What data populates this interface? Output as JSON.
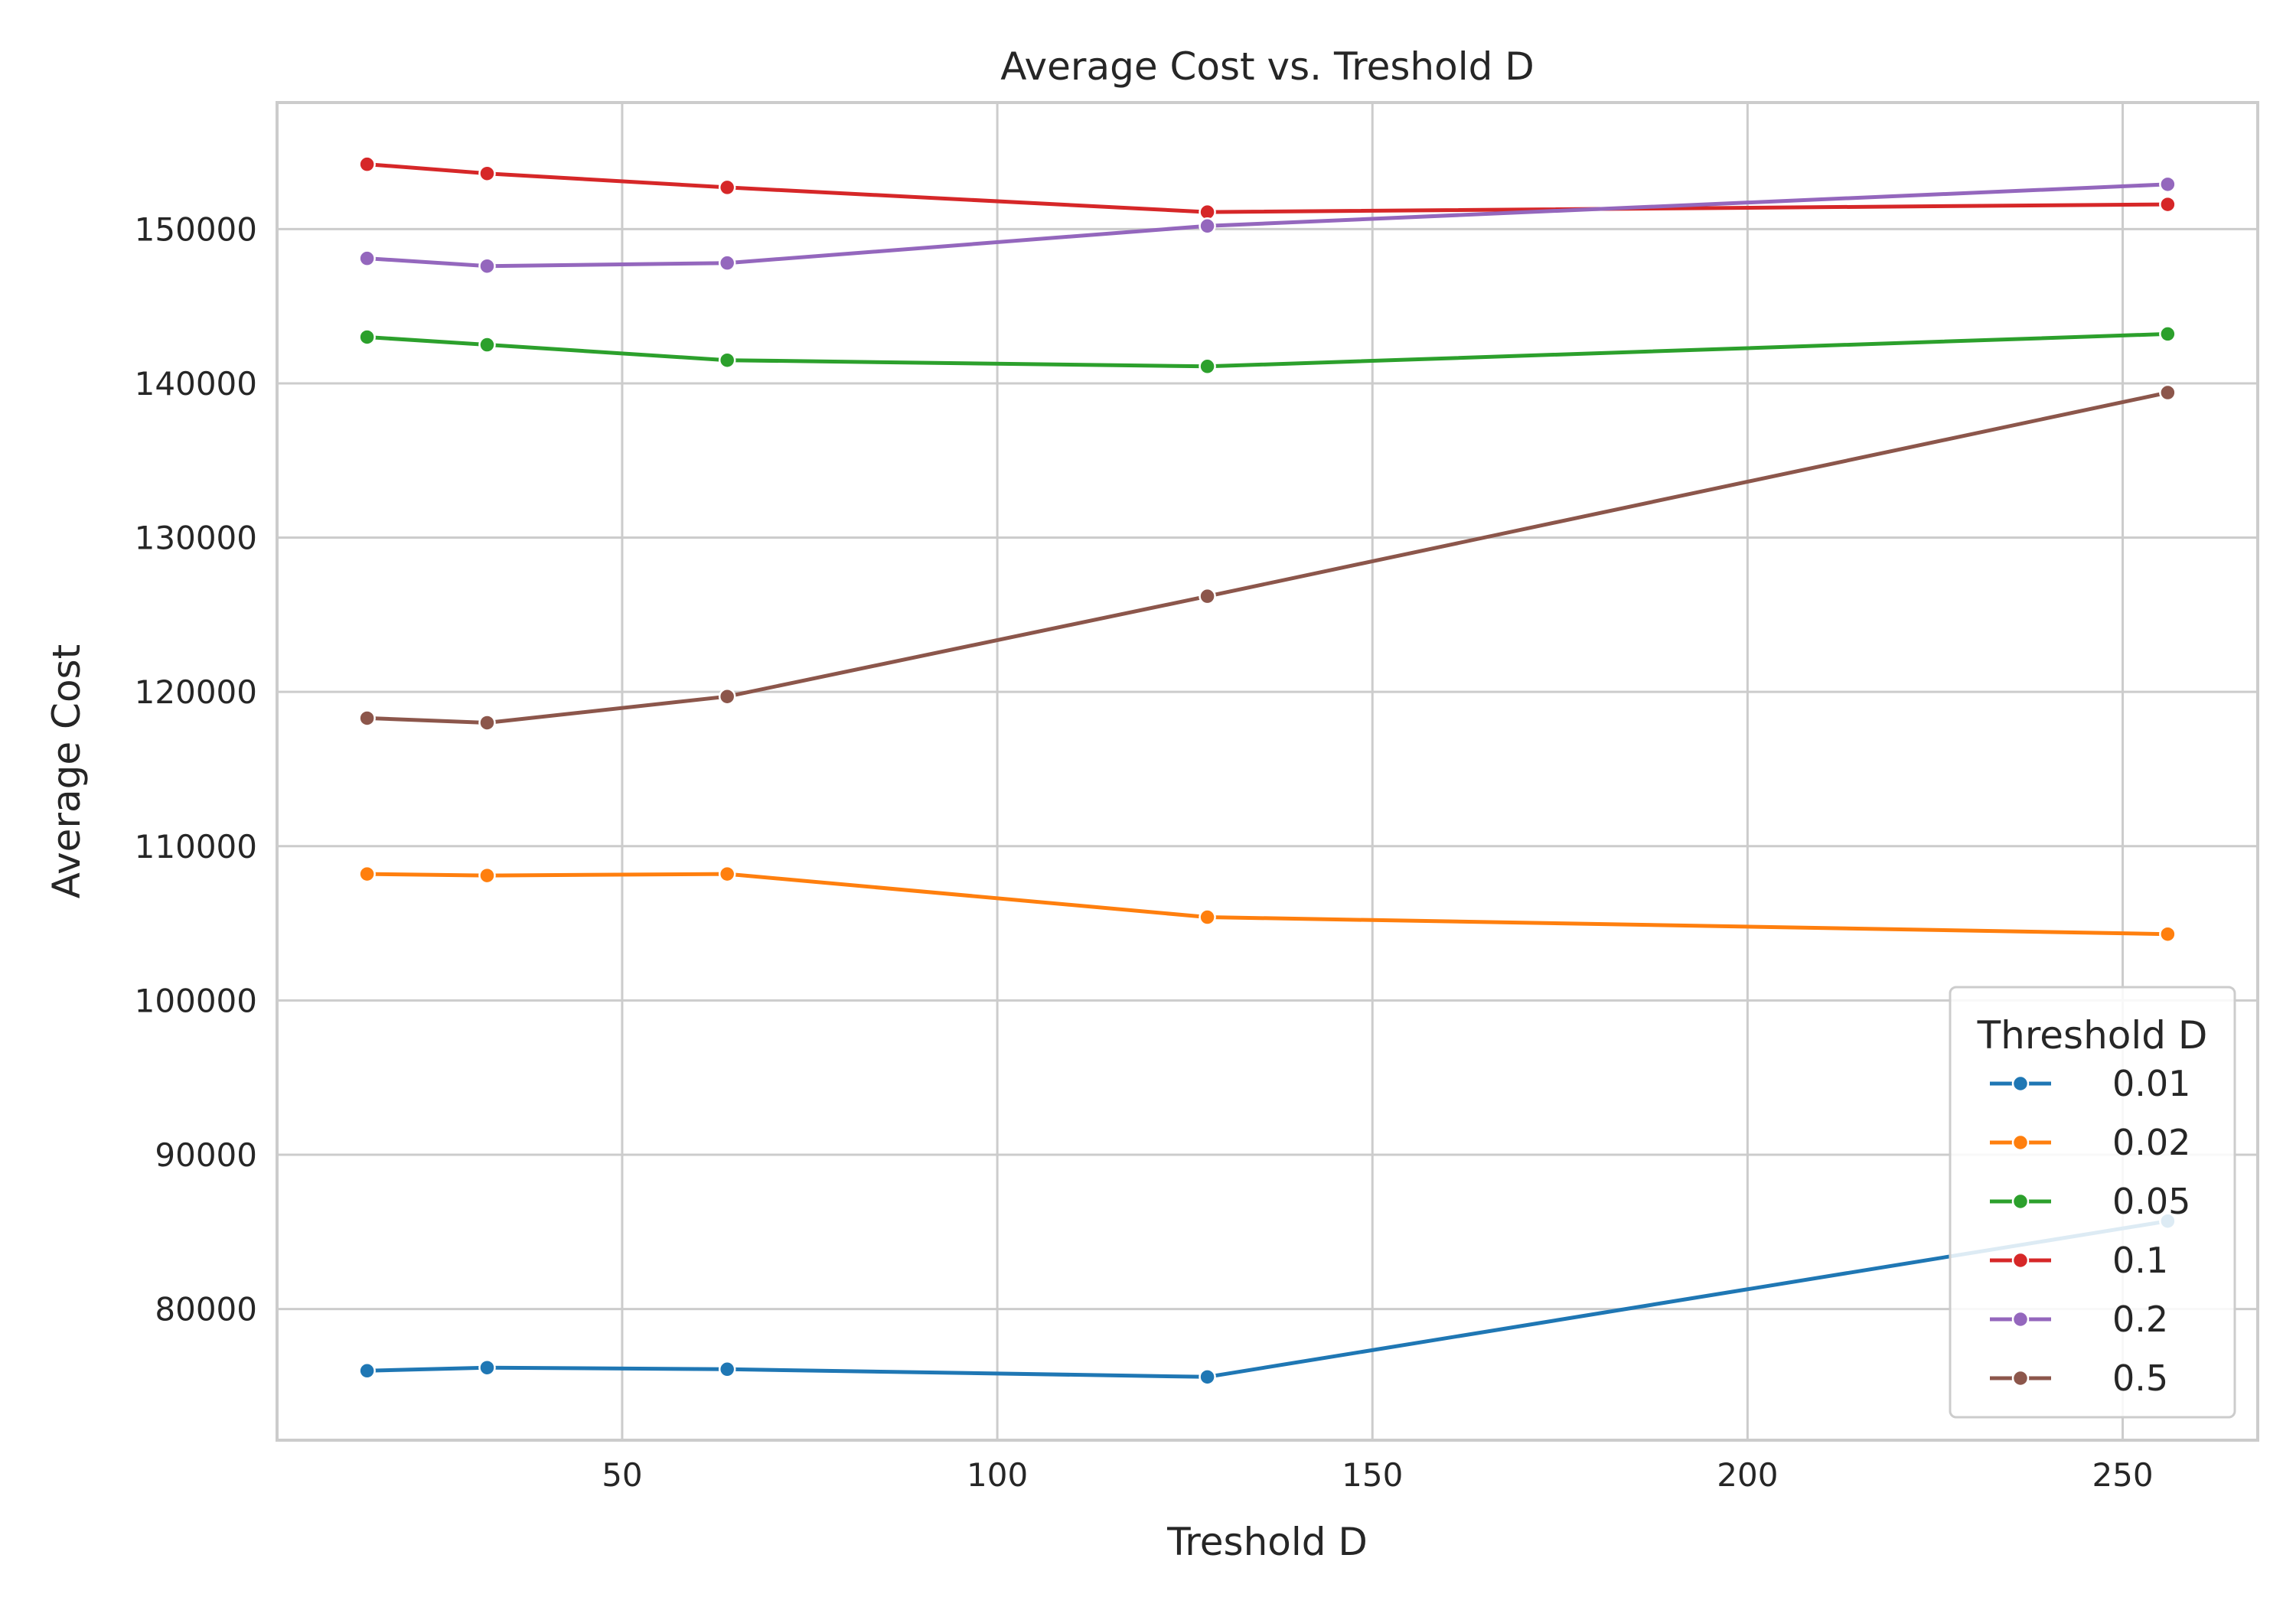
{
  "chart_data": {
    "type": "line",
    "title": "Average Cost vs. Treshold D",
    "xlabel": "Treshold D",
    "ylabel": "Average Cost",
    "x": [
      16,
      32,
      64,
      128,
      256
    ],
    "xlim": [
      4,
      268
    ],
    "ylim": [
      71500,
      158200
    ],
    "xticks": [
      50,
      100,
      150,
      200,
      250
    ],
    "yticks": [
      80000,
      90000,
      100000,
      110000,
      120000,
      130000,
      140000,
      150000
    ],
    "grid": true,
    "legend": {
      "title": "Threshold D",
      "placement": "lower-right"
    },
    "series": [
      {
        "name": "0.01",
        "color": "#1f77b4",
        "values": [
          76000,
          76200,
          76100,
          75600,
          85700
        ]
      },
      {
        "name": "0.02",
        "color": "#ff7f0e",
        "values": [
          108200,
          108100,
          108200,
          105400,
          104300
        ]
      },
      {
        "name": "0.05",
        "color": "#2ca02c",
        "values": [
          143000,
          142500,
          141500,
          141100,
          143200
        ]
      },
      {
        "name": "0.1",
        "color": "#d62728",
        "values": [
          154200,
          153600,
          152700,
          151100,
          151600
        ]
      },
      {
        "name": "0.2",
        "color": "#9467bd",
        "values": [
          148100,
          147600,
          147800,
          150200,
          152900
        ]
      },
      {
        "name": "0.5",
        "color": "#8c564b",
        "values": [
          118300,
          118000,
          119700,
          126200,
          139400
        ]
      }
    ]
  }
}
